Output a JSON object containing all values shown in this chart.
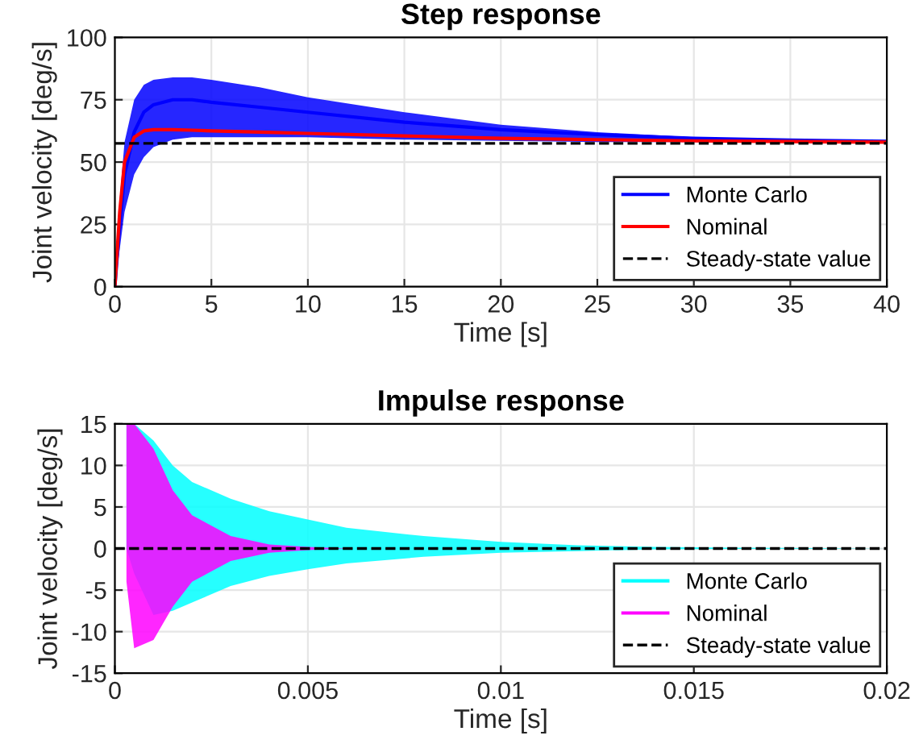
{
  "chart_data": [
    {
      "type": "line",
      "title": "Step response",
      "xlabel": "Time [s]",
      "ylabel": "Joint velocity [deg/s]",
      "xlim": [
        0,
        40
      ],
      "ylim": [
        0,
        100
      ],
      "xticks": [
        0,
        5,
        10,
        15,
        20,
        25,
        30,
        35,
        40
      ],
      "yticks": [
        0,
        25,
        50,
        75,
        100
      ],
      "grid": true,
      "legend": "bottom right",
      "line_style": "solid",
      "x": [
        0,
        0.25,
        0.5,
        1,
        1.5,
        2,
        3,
        4,
        5,
        7.5,
        10,
        15,
        20,
        25,
        30,
        35,
        40
      ],
      "series": [
        {
          "name": "Monte Carlo",
          "color": "#0000ff",
          "values": [
            0,
            25,
            45,
            62,
            70,
            73,
            75,
            75,
            74,
            72,
            70,
            66,
            63,
            61,
            59.5,
            58.8,
            58.3
          ],
          "lower": [
            0,
            15,
            30,
            45,
            52,
            56,
            59,
            60,
            60,
            60,
            60,
            59,
            58.5,
            58,
            58,
            57.8,
            57.8
          ],
          "upper": [
            0,
            35,
            58,
            75,
            81,
            83,
            84,
            84,
            83,
            80,
            76,
            70,
            65,
            62,
            60,
            59,
            58.5
          ]
        },
        {
          "name": "Nominal",
          "color": "#ff0000",
          "values": [
            0,
            30,
            50,
            60,
            62.5,
            63,
            63,
            62.8,
            62.5,
            62,
            61.5,
            60.5,
            59.5,
            59,
            58.5,
            58.2,
            58
          ]
        }
      ],
      "ref_lines": [
        {
          "axis": "y",
          "value": 57.5,
          "label": "Steady-state value",
          "color": "#000000",
          "line_style": "dashed"
        }
      ]
    },
    {
      "type": "line",
      "title": "Impulse response",
      "xlabel": "Time [s]",
      "ylabel": "Joint velocity [deg/s]",
      "xlim": [
        0,
        0.02
      ],
      "ylim": [
        -15,
        15
      ],
      "xticks": [
        0,
        0.005,
        0.01,
        0.015,
        0.02
      ],
      "yticks": [
        -15,
        -10,
        -5,
        0,
        5,
        10,
        15
      ],
      "grid": true,
      "legend": "bottom right",
      "line_style": "solid",
      "x": [
        0.0003,
        0.0005,
        0.001,
        0.0015,
        0.002,
        0.003,
        0.004,
        0.005,
        0.006,
        0.008,
        0.01,
        0.012,
        0.014,
        0.016,
        0.02
      ],
      "series": [
        {
          "name": "Monte Carlo",
          "color": "#00ffff",
          "values": [
            null,
            null,
            null,
            null,
            null,
            null,
            null,
            null,
            null,
            null,
            null,
            null,
            null,
            null,
            null
          ],
          "lower": [
            0,
            -3,
            -8,
            -7.5,
            -6.5,
            -4.5,
            -3.3,
            -2.5,
            -1.8,
            -1,
            -0.5,
            -0.3,
            -0.1,
            -0.05,
            0
          ],
          "upper": [
            15,
            15,
            13,
            10,
            8,
            6,
            4.5,
            3.5,
            2.5,
            1.5,
            0.8,
            0.4,
            0.2,
            0.1,
            0
          ]
        },
        {
          "name": "Nominal",
          "color": "#ff00ff",
          "values": [
            null,
            null,
            null,
            null,
            null,
            null,
            null,
            null,
            null,
            null,
            null,
            null,
            null,
            null,
            null
          ],
          "lower": [
            -4,
            -12,
            -11,
            -7,
            -4,
            -1.5,
            -0.5,
            -0.2,
            0,
            0,
            0,
            0,
            0,
            0,
            0
          ],
          "upper": [
            15,
            15,
            12,
            7,
            4,
            1.5,
            0.5,
            0.2,
            0,
            0,
            0,
            0,
            0,
            0,
            0
          ]
        }
      ],
      "ref_lines": [
        {
          "axis": "y",
          "value": 0,
          "label": "Steady-state value",
          "color": "#000000",
          "line_style": "dashed"
        }
      ]
    }
  ]
}
